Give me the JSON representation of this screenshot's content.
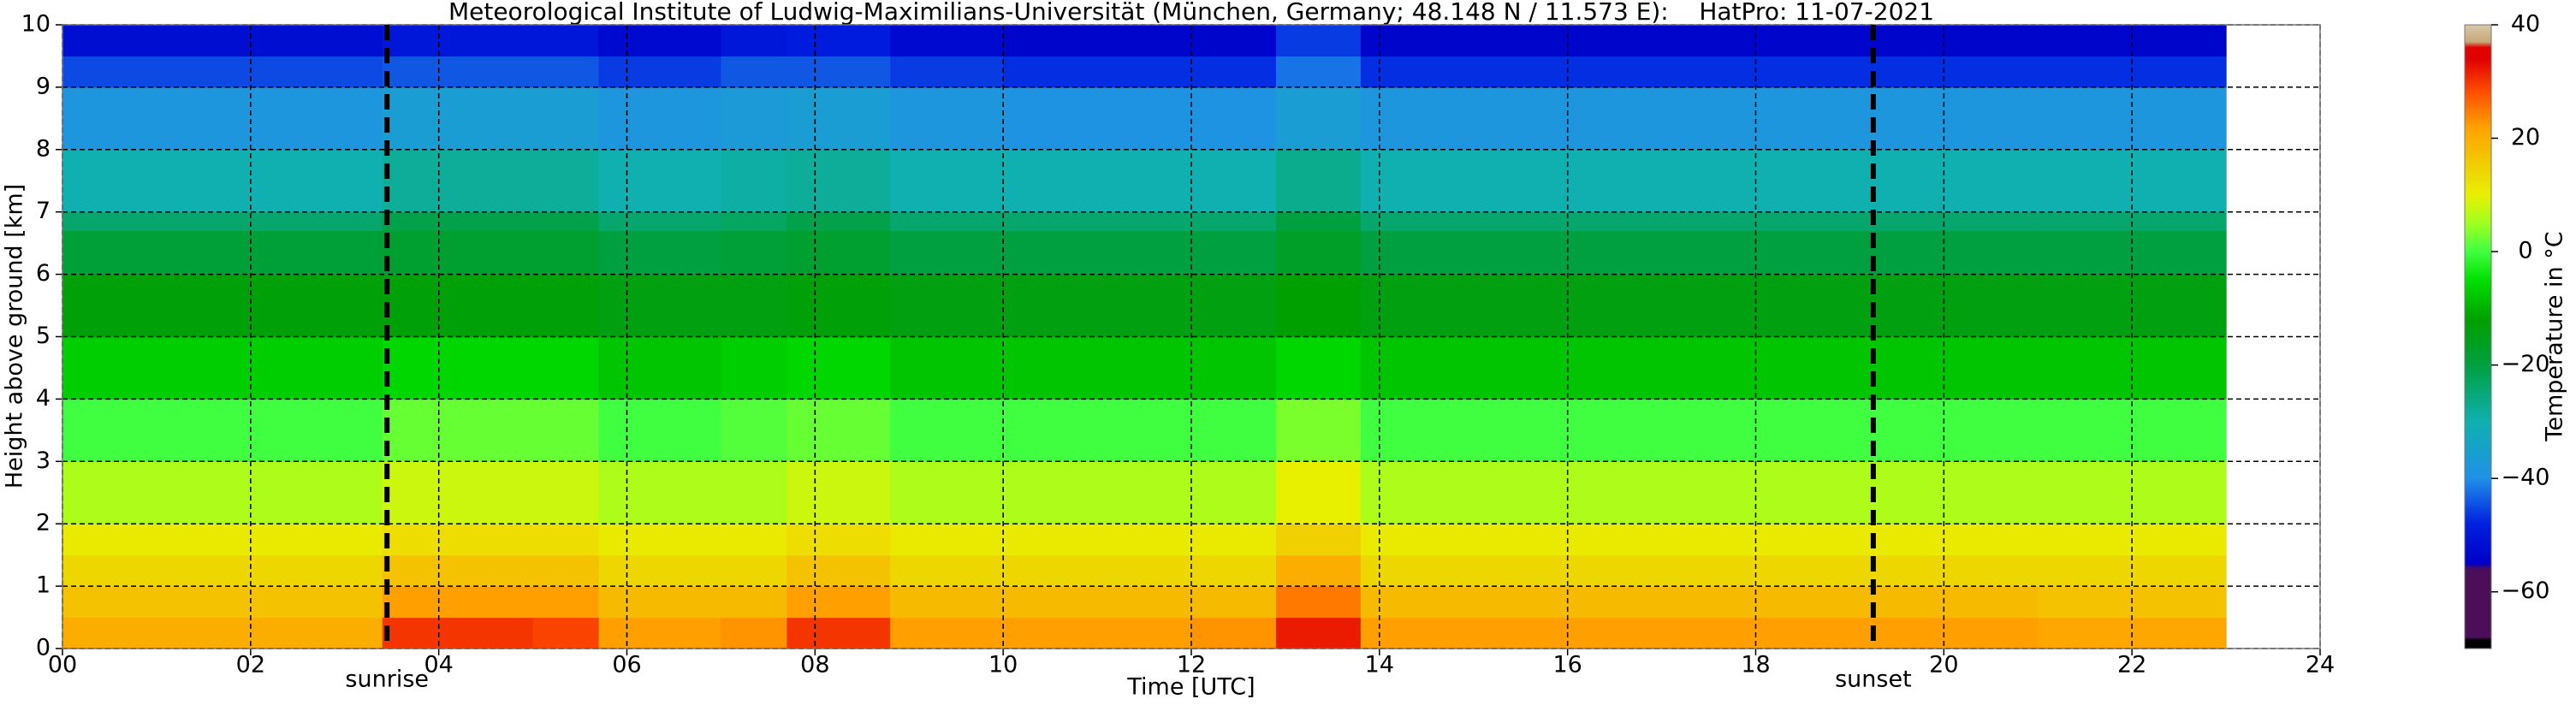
{
  "chart_data": {
    "type": "heatmap",
    "title": "Meteorological Institute of Ludwig-Maximilians-Universität (München, Germany; 48.148 N / 11.573 E):    HatPro: 11-07-2021",
    "xlabel": "Time [UTC]",
    "ylabel": "Height above ground [km]",
    "colorbar_label": "Temperature in °C",
    "xlim": [
      0,
      24
    ],
    "ylim": [
      0,
      10
    ],
    "xticks": [
      {
        "value": 0,
        "label": "00"
      },
      {
        "value": 2,
        "label": "02"
      },
      {
        "value": 4,
        "label": "04"
      },
      {
        "value": 6,
        "label": "06"
      },
      {
        "value": 8,
        "label": "08"
      },
      10,
      12,
      14,
      16,
      18,
      20,
      22,
      24
    ],
    "yticks": [
      0,
      1,
      2,
      3,
      4,
      5,
      6,
      7,
      8,
      9,
      10
    ],
    "grid": true,
    "x_edges": [
      0,
      1,
      2,
      3.4,
      4,
      5,
      5.7,
      7,
      7.7,
      8.8,
      10,
      12,
      12.9,
      13.8,
      16,
      19.2,
      21,
      23
    ],
    "y_edges": [
      0,
      0.5,
      1,
      1.5,
      2,
      3,
      4,
      5,
      6,
      6.7,
      7,
      8,
      9,
      9.5,
      10
    ],
    "values": [
      [
        20,
        17,
        14,
        11,
        6,
        0,
        -7,
        -13,
        -19,
        -24,
        -30,
        -38,
        -45,
        -52
      ],
      [
        20,
        17,
        14,
        11,
        6,
        0,
        -7,
        -13,
        -19,
        -24,
        -30,
        -38,
        -45,
        -52
      ],
      [
        20,
        17,
        14,
        11,
        6,
        0,
        -7,
        -13,
        -19,
        -24,
        -30,
        -38,
        -45,
        -52
      ],
      [
        30,
        22,
        17,
        13,
        8,
        2,
        -6,
        -13,
        -18,
        -21,
        -28,
        -36,
        -44,
        -50
      ],
      [
        30,
        22,
        17,
        13,
        8,
        2,
        -6,
        -13,
        -18,
        -21,
        -28,
        -36,
        -44,
        -50
      ],
      [
        29,
        22,
        17,
        13,
        8,
        2,
        -6,
        -13,
        -18,
        -21,
        -28,
        -36,
        -44,
        -50
      ],
      [
        22,
        18,
        14,
        11,
        6,
        0,
        -8,
        -14,
        -20,
        -24,
        -30,
        -38,
        -46,
        -53
      ],
      [
        23,
        18,
        14,
        11,
        6,
        1,
        -7,
        -14,
        -19,
        -23,
        -29,
        -37,
        -44,
        -50
      ],
      [
        30,
        22,
        17,
        13,
        8,
        2,
        -6,
        -13,
        -18,
        -21,
        -28,
        -36,
        -44,
        -49
      ],
      [
        22,
        18,
        14,
        11,
        6,
        0,
        -8,
        -14,
        -20,
        -24,
        -30,
        -38,
        -46,
        -53
      ],
      [
        22,
        18,
        14,
        11,
        6,
        0,
        -8,
        -14,
        -20,
        -24,
        -30,
        -39,
        -47,
        -54
      ],
      [
        23,
        18,
        14,
        11,
        6,
        0,
        -8,
        -14,
        -20,
        -24,
        -30,
        -39,
        -47,
        -54
      ],
      [
        32,
        25,
        20,
        15,
        10,
        3,
        -6,
        -12,
        -17,
        -20,
        -27,
        -36,
        -42,
        -46
      ],
      [
        22,
        18,
        14,
        11,
        6,
        0,
        -8,
        -14,
        -20,
        -24,
        -30,
        -38,
        -47,
        -54
      ],
      [
        22,
        18,
        14,
        11,
        6,
        0,
        -8,
        -14,
        -20,
        -24,
        -30,
        -38,
        -47,
        -54
      ],
      [
        22,
        18,
        14,
        11,
        6,
        0,
        -8,
        -14,
        -20,
        -24,
        -30,
        -38,
        -47,
        -54
      ],
      [
        21,
        17,
        14,
        11,
        6,
        0,
        -8,
        -14,
        -20,
        -24,
        -30,
        -38,
        -47,
        -54
      ]
    ],
    "clim": [
      -70,
      40
    ],
    "colorbar_ticks": [
      {
        "value": -60,
        "label": "−60"
      },
      {
        "value": -40,
        "label": "−40"
      },
      {
        "value": -20,
        "label": "−20"
      },
      0,
      20,
      40
    ],
    "colorscale": [
      [
        -70,
        "#000000"
      ],
      [
        -68.5,
        "#000000"
      ],
      [
        -68,
        "#4b0f5a"
      ],
      [
        -56,
        "#4b0f5a"
      ],
      [
        -55,
        "#0000c8"
      ],
      [
        -48,
        "#0020e0"
      ],
      [
        -40,
        "#2090e8"
      ],
      [
        -30,
        "#10b0b0"
      ],
      [
        -20,
        "#00a040"
      ],
      [
        -12,
        "#00a000"
      ],
      [
        -5,
        "#00e000"
      ],
      [
        0,
        "#40ff40"
      ],
      [
        5,
        "#a0ff20"
      ],
      [
        10,
        "#e8f000"
      ],
      [
        15,
        "#f0d000"
      ],
      [
        22,
        "#ffa000"
      ],
      [
        28,
        "#ff5000"
      ],
      [
        34,
        "#e00000"
      ],
      [
        36,
        "#e00000"
      ],
      [
        37,
        "#c8a878"
      ],
      [
        40,
        "#d8c8a8"
      ]
    ],
    "annotations": [
      {
        "label": "sunrise",
        "x": 3.45
      },
      {
        "label": "sunset",
        "x": 19.25
      }
    ]
  }
}
